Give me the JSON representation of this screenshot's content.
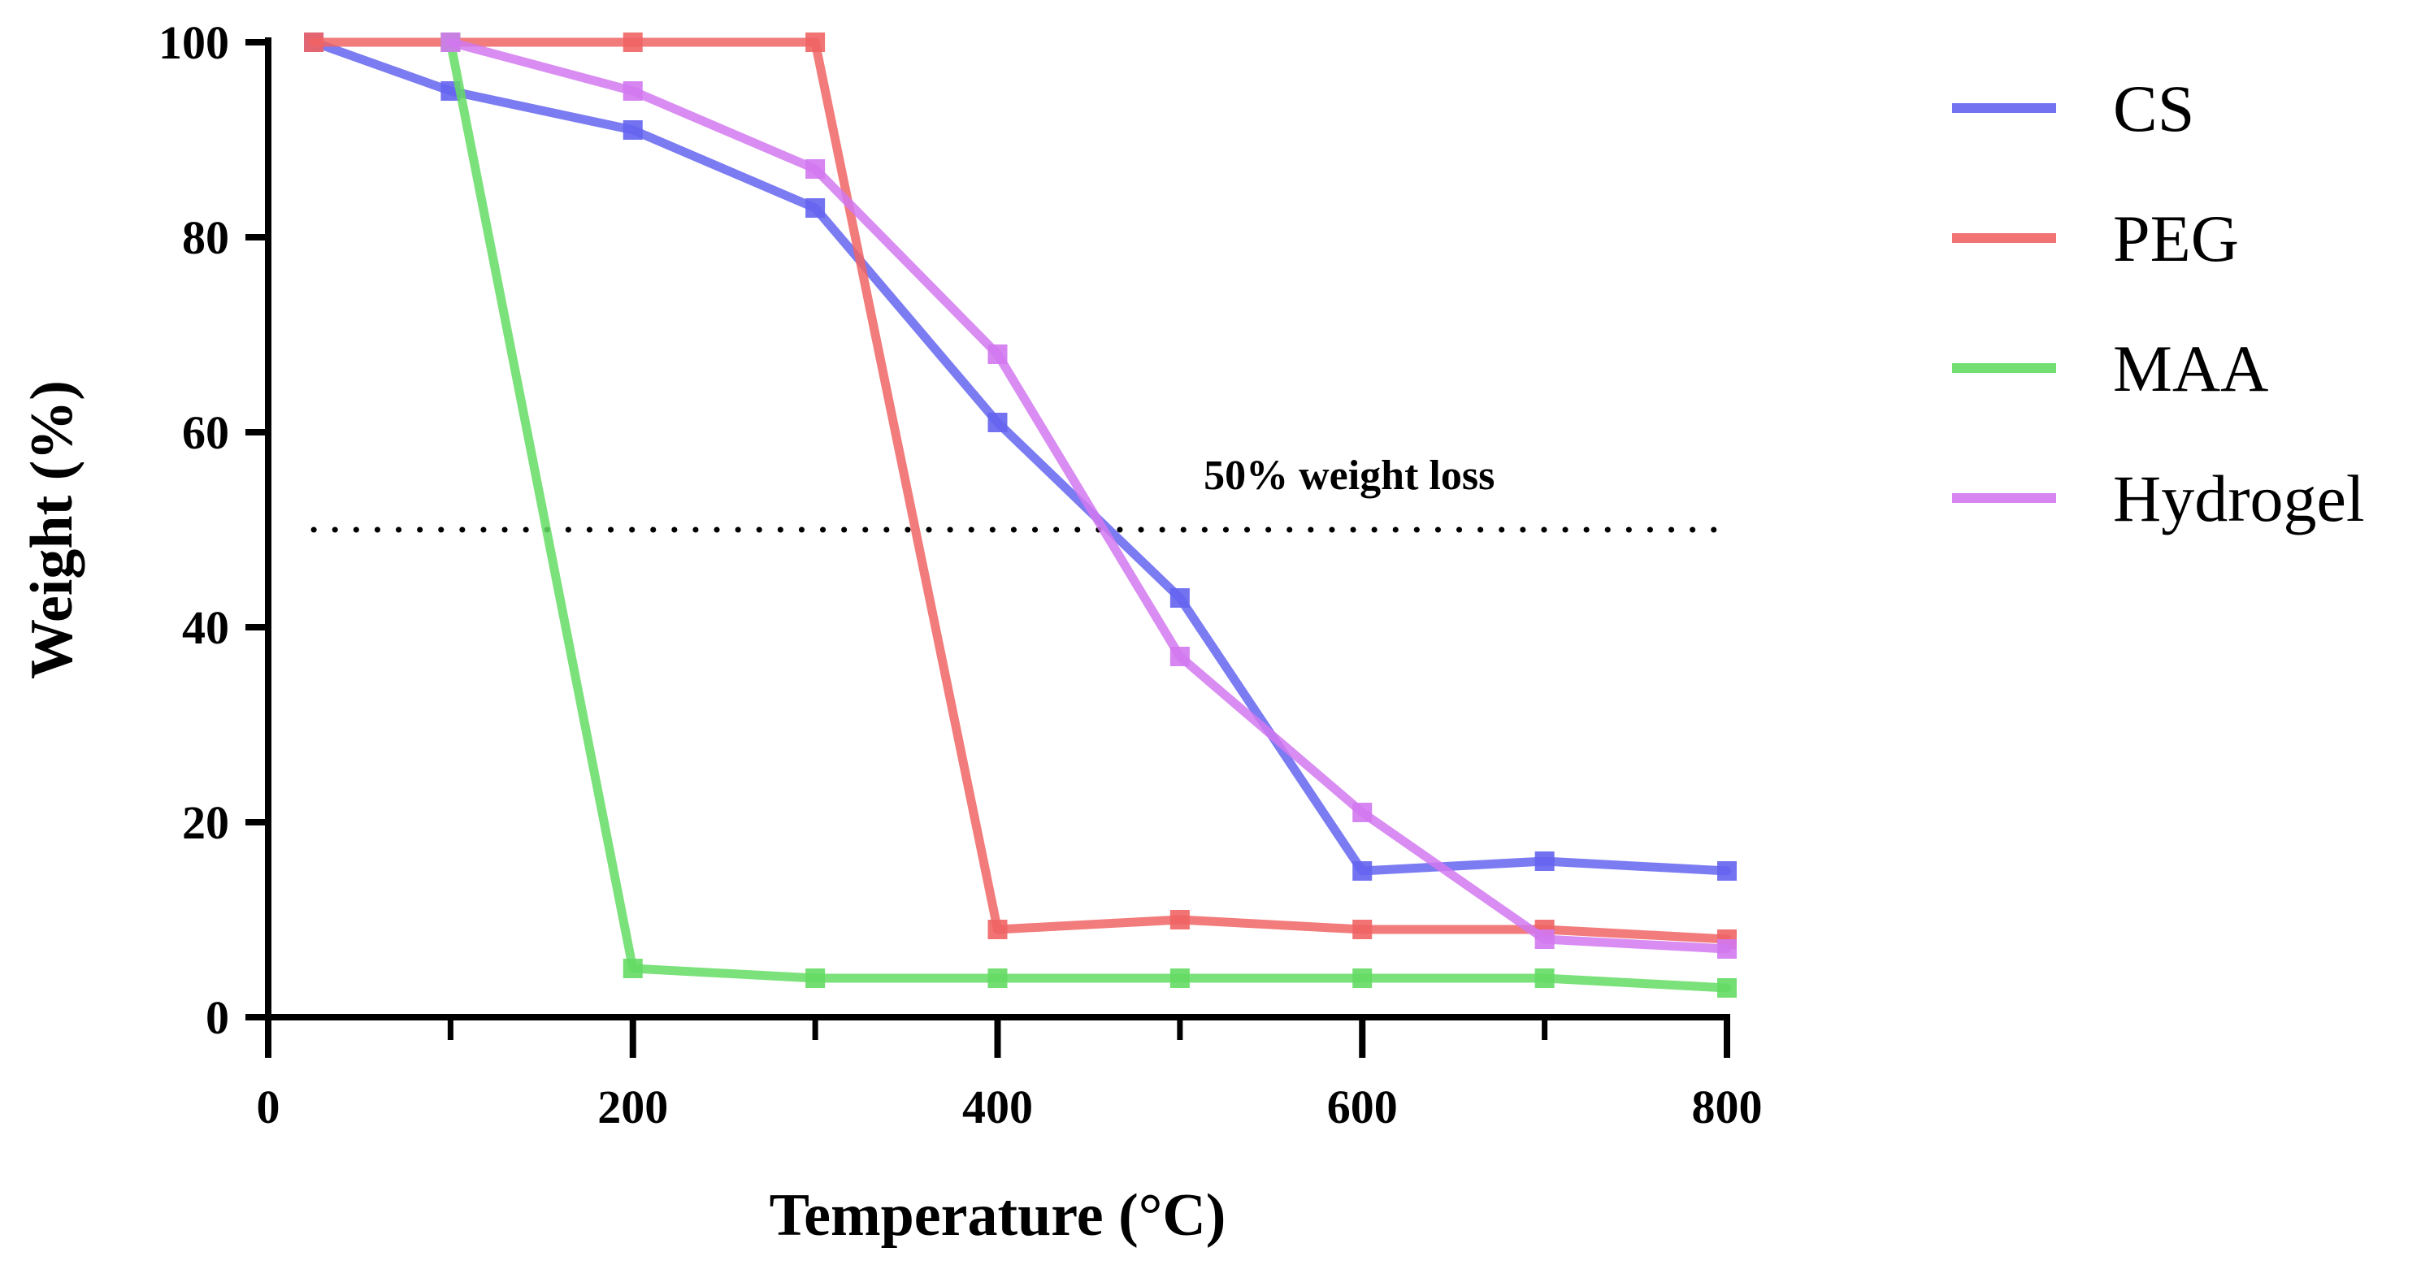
{
  "chart_data": {
    "type": "line",
    "title": "",
    "xlabel": "Temperature (°C)",
    "ylabel": "Weight (%)",
    "xlim": [
      0,
      800
    ],
    "ylim": [
      0,
      100
    ],
    "xticks": [
      0,
      200,
      400,
      600,
      800
    ],
    "yticks": [
      0,
      20,
      40,
      60,
      80,
      100
    ],
    "grid": false,
    "legend_position": "top-right outside",
    "series": [
      {
        "name": "CS",
        "color": "#6464f0",
        "x": [
          25,
          100,
          200,
          300,
          400,
          500,
          600,
          700,
          800
        ],
        "values": [
          100,
          95,
          91,
          83,
          61,
          43,
          15,
          16,
          15
        ]
      },
      {
        "name": "PEG",
        "color": "#f06464",
        "x": [
          25,
          100,
          200,
          300,
          400,
          500,
          600,
          700,
          800
        ],
        "values": [
          100,
          100,
          100,
          100,
          9,
          10,
          9,
          9,
          8
        ]
      },
      {
        "name": "MAA",
        "color": "#64dc64",
        "x": [
          100,
          200,
          300,
          400,
          500,
          600,
          700,
          800
        ],
        "values": [
          100,
          5,
          4,
          4,
          4,
          4,
          4,
          3
        ]
      },
      {
        "name": "Hydrogel",
        "color": "#d278f0",
        "x": [
          100,
          200,
          300,
          400,
          500,
          600,
          700,
          800
        ],
        "values": [
          100,
          95,
          87,
          68,
          37,
          21,
          8,
          7
        ]
      }
    ],
    "reference_line": {
      "y": 50,
      "x_range": [
        25,
        800
      ],
      "style": "dotted",
      "label": "50% weight loss"
    }
  }
}
